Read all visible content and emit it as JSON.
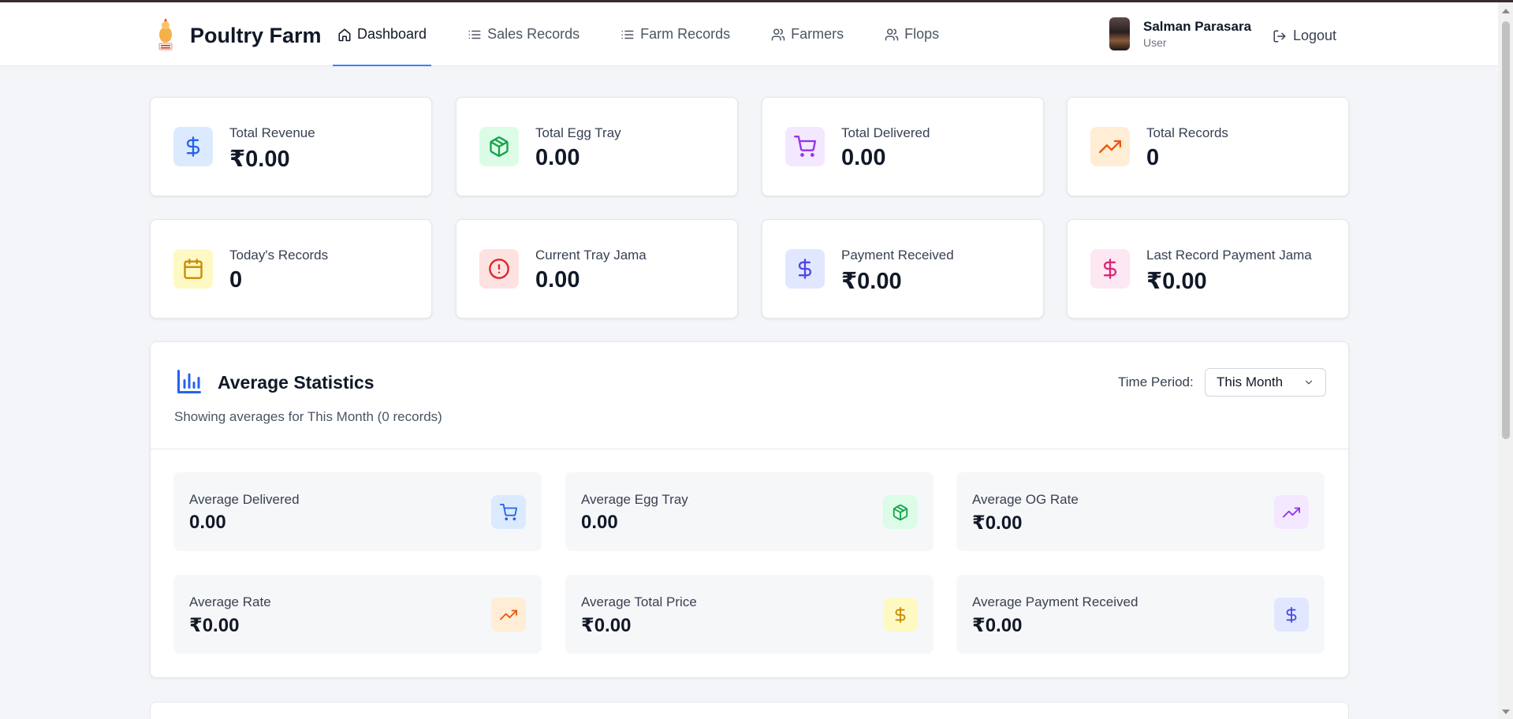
{
  "header": {
    "brand": "Poultry Farm",
    "nav": [
      {
        "label": "Dashboard",
        "icon": "home-icon",
        "active": true
      },
      {
        "label": "Sales Records",
        "icon": "list-icon"
      },
      {
        "label": "Farm Records",
        "icon": "list-icon"
      },
      {
        "label": "Farmers",
        "icon": "users-icon"
      },
      {
        "label": "Flops",
        "icon": "users-icon"
      }
    ],
    "user": {
      "name": "Salman Parasara",
      "role": "User"
    },
    "logout_label": "Logout"
  },
  "stats": [
    {
      "label": "Total Revenue",
      "value": "₹0.00",
      "icon": "dollar-icon",
      "color": "#2563eb",
      "bg": "#dbeafe"
    },
    {
      "label": "Total Egg Tray",
      "value": "0.00",
      "icon": "package-icon",
      "color": "#16a34a",
      "bg": "#dcfce7"
    },
    {
      "label": "Total Delivered",
      "value": "0.00",
      "icon": "cart-icon",
      "color": "#9333ea",
      "bg": "#f3e8ff"
    },
    {
      "label": "Total Records",
      "value": "0",
      "icon": "trending-up-icon",
      "color": "#ea580c",
      "bg": "#ffedd5"
    },
    {
      "label": "Today's Records",
      "value": "0",
      "icon": "calendar-icon",
      "color": "#ca8a04",
      "bg": "#fef9c3"
    },
    {
      "label": "Current Tray Jama",
      "value": "0.00",
      "icon": "alert-circle-icon",
      "color": "#dc2626",
      "bg": "#fee2e2"
    },
    {
      "label": "Payment Received",
      "value": "₹0.00",
      "icon": "dollar-icon",
      "color": "#4f46e5",
      "bg": "#e0e7ff"
    },
    {
      "label": "Last Record Payment Jama",
      "value": "₹0.00",
      "icon": "dollar-icon",
      "color": "#db2777",
      "bg": "#fce7f3"
    }
  ],
  "average": {
    "title": "Average Statistics",
    "subtitle": "Showing averages for This Month (0 records)",
    "period_label": "Time Period:",
    "period_value": "This Month",
    "items": [
      {
        "label": "Average Delivered",
        "value": "0.00",
        "icon": "cart-icon",
        "color": "#2563eb",
        "bg": "#dbeafe"
      },
      {
        "label": "Average Egg Tray",
        "value": "0.00",
        "icon": "package-icon",
        "color": "#16a34a",
        "bg": "#dcfce7"
      },
      {
        "label": "Average OG Rate",
        "value": "₹0.00",
        "icon": "trending-up-icon",
        "color": "#9333ea",
        "bg": "#f3e8ff"
      },
      {
        "label": "Average Rate",
        "value": "₹0.00",
        "icon": "trending-up-icon",
        "color": "#ea580c",
        "bg": "#ffedd5"
      },
      {
        "label": "Average Total Price",
        "value": "₹0.00",
        "icon": "dollar-icon",
        "color": "#ca8a04",
        "bg": "#fef9c3"
      },
      {
        "label": "Average Payment Received",
        "value": "₹0.00",
        "icon": "dollar-icon",
        "color": "#4f46e5",
        "bg": "#e0e7ff"
      }
    ]
  }
}
